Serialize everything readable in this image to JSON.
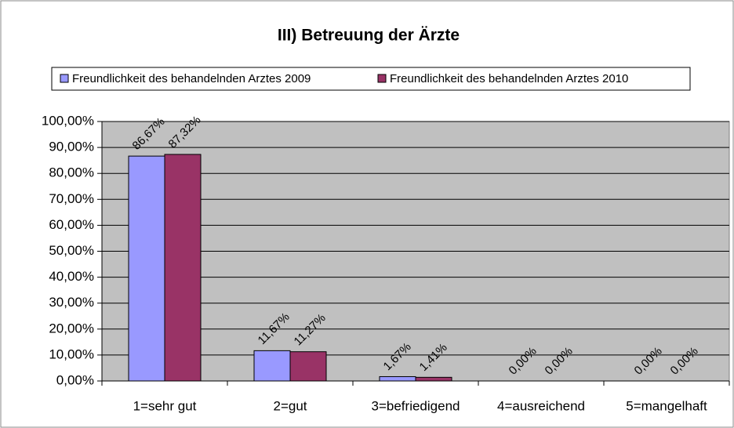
{
  "chart_data": {
    "type": "bar",
    "title": "III) Betreuung der Ärzte",
    "categories": [
      "1=sehr gut",
      "2=gut",
      "3=befriedigend",
      "4=ausreichend",
      "5=mangelhaft"
    ],
    "series": [
      {
        "name": "Freundlichkeit des behandelnden Arztes 2009",
        "color": "#9999ff",
        "values": [
          86.67,
          11.67,
          1.67,
          0,
          0
        ],
        "value_labels": [
          "86,67%",
          "11,67%",
          "1,67%",
          "0,00%",
          "0,00%"
        ]
      },
      {
        "name": "Freundlichkeit des behandelnden Arztes 2010",
        "color": "#993366",
        "values": [
          87.32,
          11.27,
          1.41,
          0,
          0
        ],
        "value_labels": [
          "87,32%",
          "11,27%",
          "1,41%",
          "0,00%",
          "0,00%"
        ]
      }
    ],
    "ylim": [
      0,
      100
    ],
    "yticks": [
      {
        "value": 0,
        "label": "0,00%"
      },
      {
        "value": 10,
        "label": "10,00%"
      },
      {
        "value": 20,
        "label": "20,00%"
      },
      {
        "value": 30,
        "label": "30,00%"
      },
      {
        "value": 40,
        "label": "40,00%"
      },
      {
        "value": 50,
        "label": "50,00%"
      },
      {
        "value": 60,
        "label": "60,00%"
      },
      {
        "value": 70,
        "label": "70,00%"
      },
      {
        "value": 80,
        "label": "80,00%"
      },
      {
        "value": 90,
        "label": "90,00%"
      },
      {
        "value": 100,
        "label": "100,00%"
      }
    ],
    "grid": true,
    "legend": "top",
    "plot_background": "#c0c0c0"
  }
}
